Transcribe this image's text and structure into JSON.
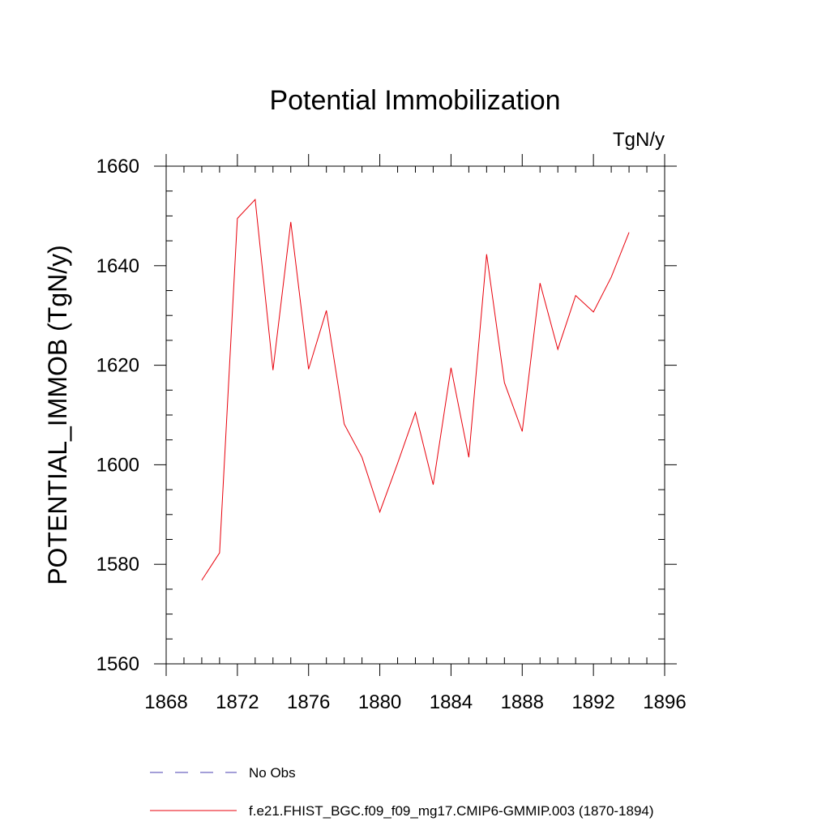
{
  "chart_data": {
    "type": "line",
    "title": "Potential Immobilization",
    "units_label": "TgN/y",
    "xlabel": "",
    "ylabel": "POTENTIAL_IMMOB  (TgN/y)",
    "xlim": [
      1868,
      1896
    ],
    "ylim": [
      1560,
      1660
    ],
    "x_ticks": [
      1868,
      1872,
      1876,
      1880,
      1884,
      1888,
      1892,
      1896
    ],
    "y_ticks": [
      1560,
      1580,
      1600,
      1620,
      1640,
      1660
    ],
    "grid": false,
    "legend_position": "bottom",
    "series": [
      {
        "name": "No Obs",
        "color": "#4a3fb0",
        "dashed": true,
        "x": [],
        "values": []
      },
      {
        "name": "f.e21.FHIST_BGC.f09_f09_mg17.CMIP6-GMMIP.003 (1870-1894)",
        "color": "#e8000b",
        "dashed": false,
        "x": [
          1870,
          1871,
          1872,
          1873,
          1874,
          1875,
          1876,
          1877,
          1878,
          1879,
          1880,
          1881,
          1882,
          1883,
          1884,
          1885,
          1886,
          1887,
          1888,
          1889,
          1890,
          1891,
          1892,
          1893,
          1894
        ],
        "values": [
          1576.8,
          1582.3,
          1649.5,
          1653.3,
          1619.0,
          1648.8,
          1619.2,
          1631.0,
          1608.2,
          1601.5,
          1590.5,
          1600.3,
          1610.5,
          1596.0,
          1619.5,
          1601.5,
          1642.3,
          1616.5,
          1606.7,
          1636.5,
          1623.2,
          1634.0,
          1630.7,
          1637.7,
          1646.7
        ]
      }
    ]
  }
}
